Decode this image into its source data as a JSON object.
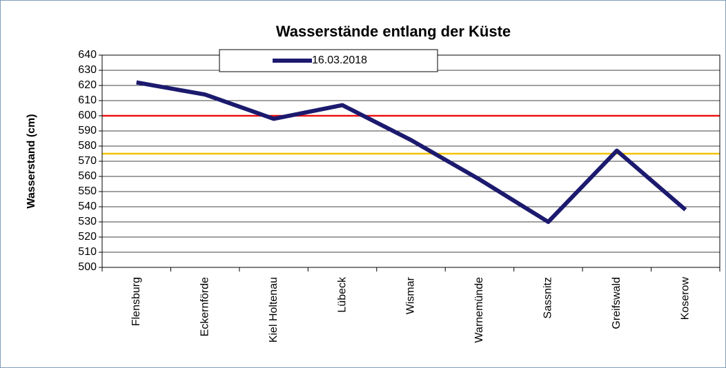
{
  "chart_data": {
    "type": "line",
    "title": "Wasserstände entlang der Küste",
    "y_label": "Wasserstand (cm)",
    "categories": [
      "Flensburg",
      "Eckernförde",
      "Kiel Holtenau",
      "Lübeck",
      "Wismar",
      "Warnemünde",
      "Sassnitz",
      "Greifswald",
      "Koserow"
    ],
    "series": [
      {
        "name": "16.03.2018",
        "color": "#1c1a6e",
        "values": [
          622,
          614,
          598,
          607,
          584,
          558,
          530,
          577,
          538
        ]
      }
    ],
    "reference_lines": [
      {
        "value": 600,
        "color": "#ee1111"
      },
      {
        "value": 575,
        "color": "#f2c200"
      }
    ],
    "ylim": [
      500,
      640
    ],
    "yticks": [
      500,
      510,
      520,
      530,
      540,
      550,
      560,
      570,
      580,
      590,
      600,
      610,
      620,
      630,
      640
    ],
    "grid": true,
    "legend": "top"
  }
}
